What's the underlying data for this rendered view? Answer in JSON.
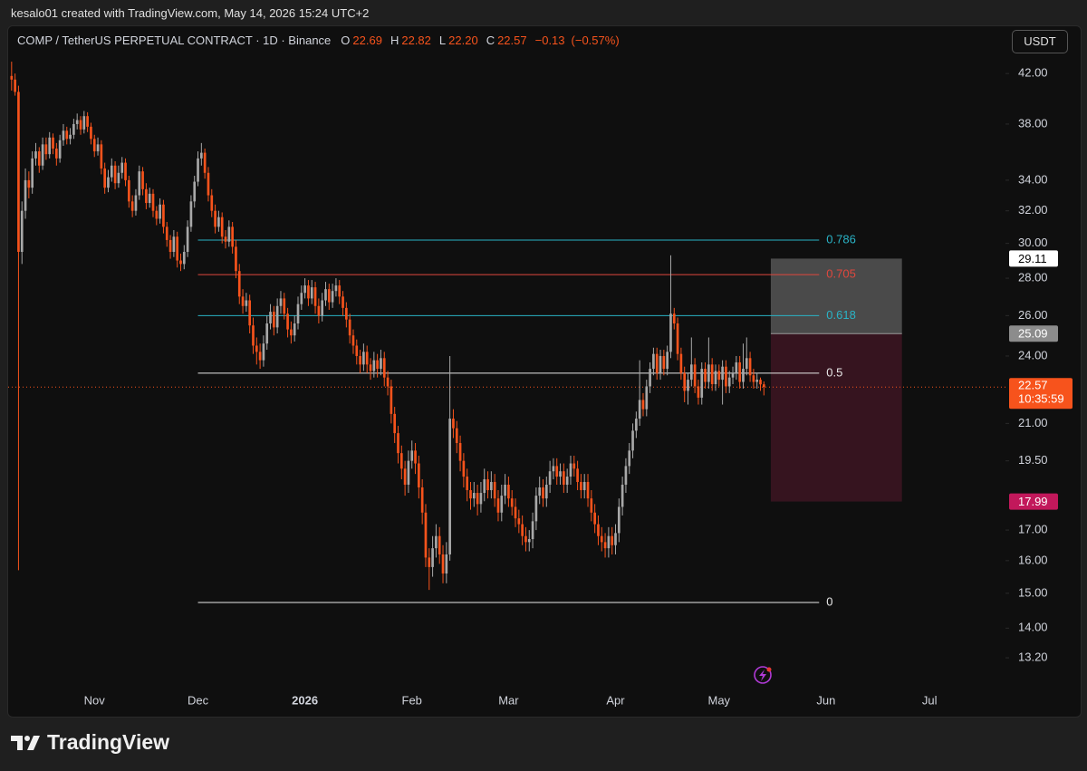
{
  "header": {
    "attribution": "kesalo01 created with TradingView.com, May 14, 2026 15:24 UTC+2"
  },
  "footer": {
    "brand": "TradingView"
  },
  "chart_data": {
    "type": "candlestick",
    "title": "COMP / TetherUS PERPETUAL CONTRACT · 1D · Binance",
    "ohlc_legend": {
      "open_label": "O",
      "open": 22.69,
      "high_label": "H",
      "high": 22.82,
      "low_label": "L",
      "low": {
        "value": 22.2,
        "label": "22.20"
      },
      "close_label": "C",
      "close": 22.57,
      "change": {
        "value": -0.13,
        "label": "−0.13"
      },
      "change_percent": {
        "value": -0.57,
        "label": "(−0.57%)"
      }
    },
    "currency": "USDT",
    "up_color": "#a8a8a8",
    "down_color": "#f7531c",
    "log_scale": true,
    "xlim": [
      -1,
      288
    ],
    "xticks": [
      {
        "value": 24,
        "label": "Nov"
      },
      {
        "value": 54,
        "label": "Dec"
      },
      {
        "value": 85,
        "label": "2026"
      },
      {
        "value": 116,
        "label": "Feb"
      },
      {
        "value": 144,
        "label": "Mar"
      },
      {
        "value": 175,
        "label": "Apr"
      },
      {
        "value": 205,
        "label": "May"
      },
      {
        "value": 236,
        "label": "Jun"
      },
      {
        "value": 266,
        "label": "Jul"
      }
    ],
    "ylim": [
      12.42,
      46.04
    ],
    "yticks": [
      {
        "value": 42,
        "label": "42.00"
      },
      {
        "value": 38,
        "label": "38.00"
      },
      {
        "value": 34,
        "label": "34.00"
      },
      {
        "value": 32,
        "label": "32.00"
      },
      {
        "value": 30,
        "label": "30.00"
      },
      {
        "value": 28,
        "label": "28.00"
      },
      {
        "value": 26,
        "label": "26.00"
      },
      {
        "value": 24,
        "label": "24.00"
      },
      {
        "value": 21,
        "label": "21.00"
      },
      {
        "value": 19.5,
        "label": "19.50"
      },
      {
        "value": 17,
        "label": "17.00"
      },
      {
        "value": 16,
        "label": "16.00"
      },
      {
        "value": 15,
        "label": "15.00"
      },
      {
        "value": 14,
        "label": "14.00"
      },
      {
        "value": 13.2,
        "label": "13.20"
      }
    ],
    "candles": [
      [
        41.8,
        43,
        40.6,
        41.5
      ],
      [
        41.5,
        42,
        40.2,
        40.5
      ],
      [
        40.5,
        41,
        15.7,
        29.5
      ],
      [
        29.5,
        32.6,
        28.8,
        32
      ],
      [
        32,
        34.8,
        31.5,
        34
      ],
      [
        34,
        34.6,
        32.8,
        33.5
      ],
      [
        33.5,
        36,
        33.1,
        35.5
      ],
      [
        35.5,
        36.6,
        35,
        36
      ],
      [
        36,
        36.3,
        34.5,
        35
      ],
      [
        35,
        37,
        34.7,
        36.5
      ],
      [
        36.5,
        37,
        35.4,
        35.8
      ],
      [
        35.8,
        37.4,
        35.5,
        37
      ],
      [
        37,
        37.3,
        35.8,
        36.2
      ],
      [
        36.2,
        36.6,
        35,
        35.5
      ],
      [
        35.5,
        37.2,
        35.2,
        36.8
      ],
      [
        36.8,
        38,
        36.4,
        37.5
      ],
      [
        37.5,
        37.8,
        36.5,
        36.9
      ],
      [
        36.9,
        37.7,
        36.5,
        37.2
      ],
      [
        37.2,
        38.4,
        36.9,
        38
      ],
      [
        38,
        38.8,
        37.6,
        38.3
      ],
      [
        38.3,
        38.6,
        37.2,
        37.6
      ],
      [
        37.6,
        39,
        37.3,
        38.6
      ],
      [
        38.6,
        38.9,
        37.4,
        37.8
      ],
      [
        37.8,
        38.1,
        36.5,
        36.9
      ],
      [
        36.9,
        37.2,
        35.6,
        36
      ],
      [
        36,
        37,
        35.7,
        36.5
      ],
      [
        36.5,
        36.8,
        34.4,
        34.8
      ],
      [
        34.8,
        35.2,
        33.1,
        33.5
      ],
      [
        33.5,
        34.7,
        33.2,
        34.2
      ],
      [
        34.2,
        35.5,
        33.9,
        35
      ],
      [
        35,
        35.3,
        33.4,
        33.8
      ],
      [
        33.8,
        35,
        33.5,
        34.5
      ],
      [
        34.5,
        35.6,
        34.1,
        35.2
      ],
      [
        35.2,
        35.5,
        33.6,
        34
      ],
      [
        34,
        34.3,
        32.2,
        32.6
      ],
      [
        32.6,
        33,
        31.6,
        32
      ],
      [
        32,
        33.4,
        31.7,
        33
      ],
      [
        33,
        35,
        32.7,
        34.6
      ],
      [
        34.6,
        34.9,
        33,
        33.4
      ],
      [
        33.4,
        33.8,
        32.1,
        32.5
      ],
      [
        32.5,
        33.5,
        32.2,
        33.1
      ],
      [
        33.1,
        33.4,
        31.6,
        32
      ],
      [
        32,
        32.3,
        31.1,
        31.5
      ],
      [
        31.5,
        32.8,
        31.2,
        32.4
      ],
      [
        32.4,
        32.7,
        30.6,
        31
      ],
      [
        31,
        31.3,
        29.8,
        30.2
      ],
      [
        30.2,
        30.5,
        29.1,
        29.5
      ],
      [
        29.5,
        30.8,
        29.2,
        30.4
      ],
      [
        30.4,
        30.7,
        28.6,
        29
      ],
      [
        29,
        29.4,
        28.4,
        28.8
      ],
      [
        28.8,
        29.9,
        28.5,
        29.5
      ],
      [
        29.5,
        31.4,
        29.2,
        31
      ],
      [
        31,
        33,
        30.7,
        32.6
      ],
      [
        32.6,
        34.3,
        32.2,
        33.9
      ],
      [
        33.9,
        36,
        33.6,
        35.5
      ],
      [
        35.5,
        36.6,
        35,
        35.9
      ],
      [
        35.9,
        36.2,
        34.1,
        34.5
      ],
      [
        34.5,
        34.9,
        32.6,
        33
      ],
      [
        33,
        33.4,
        31.6,
        32
      ],
      [
        32,
        32.4,
        30.6,
        31
      ],
      [
        31,
        32,
        30.7,
        31.6
      ],
      [
        31.6,
        31.9,
        30,
        30.4
      ],
      [
        30.4,
        30.8,
        29.7,
        30.1
      ],
      [
        30.1,
        31.4,
        29.8,
        31
      ],
      [
        31,
        31.3,
        29.4,
        29.8
      ],
      [
        29.8,
        30.2,
        28,
        28.4
      ],
      [
        28.4,
        28.8,
        26.6,
        27
      ],
      [
        27,
        27.4,
        26.1,
        26.5
      ],
      [
        26.5,
        27.2,
        26.2,
        26.8
      ],
      [
        26.8,
        27.1,
        25.1,
        25.5
      ],
      [
        25.5,
        25.9,
        24.1,
        24.5
      ],
      [
        24.5,
        24.9,
        23.6,
        24.2
      ],
      [
        24.2,
        24.6,
        23.4,
        23.8
      ],
      [
        23.8,
        25,
        23.5,
        24.6
      ],
      [
        24.6,
        26,
        24.3,
        25.6
      ],
      [
        25.6,
        26.6,
        25.3,
        26.2
      ],
      [
        26.2,
        26.5,
        25,
        25.4
      ],
      [
        25.4,
        26.9,
        25.1,
        26.5
      ],
      [
        26.5,
        27.3,
        26.1,
        26.9
      ],
      [
        26.9,
        27.2,
        25.8,
        26.1
      ],
      [
        26.1,
        26.4,
        24.9,
        25.3
      ],
      [
        25.3,
        25.7,
        24.6,
        25
      ],
      [
        25,
        26,
        24.7,
        25.6
      ],
      [
        25.6,
        27,
        25.3,
        26.6
      ],
      [
        26.6,
        27.6,
        26.3,
        27.2
      ],
      [
        27.2,
        28,
        26.9,
        27.6
      ],
      [
        27.6,
        27.9,
        26.5,
        26.9
      ],
      [
        26.9,
        27.9,
        26.6,
        27.5
      ],
      [
        27.5,
        27.8,
        26.1,
        26.5
      ],
      [
        26.5,
        26.9,
        25.6,
        26
      ],
      [
        26,
        27.2,
        25.7,
        26.8
      ],
      [
        26.8,
        27.8,
        26.5,
        27.4
      ],
      [
        27.4,
        27.7,
        26.3,
        26.7
      ],
      [
        26.7,
        27.7,
        26.4,
        27.3
      ],
      [
        27.3,
        28,
        27,
        27.6
      ],
      [
        27.6,
        27.9,
        26.6,
        27
      ],
      [
        27,
        27.3,
        26,
        26.4
      ],
      [
        26.4,
        26.7,
        25.4,
        25.8
      ],
      [
        25.8,
        26.1,
        24.6,
        25
      ],
      [
        25,
        25.3,
        24.1,
        24.5
      ],
      [
        24.5,
        24.8,
        23.6,
        24
      ],
      [
        24,
        24.3,
        23.2,
        23.6
      ],
      [
        23.6,
        24.6,
        23.3,
        24.2
      ],
      [
        24.2,
        24.5,
        23.2,
        23.6
      ],
      [
        23.6,
        23.9,
        22.9,
        23.3
      ],
      [
        23.3,
        24.2,
        23,
        23.8
      ],
      [
        23.8,
        24.1,
        23,
        23.4
      ],
      [
        23.4,
        24.3,
        23.1,
        23.9
      ],
      [
        23.9,
        24.2,
        22.6,
        23
      ],
      [
        23,
        23.3,
        22.2,
        22.6
      ],
      [
        22.6,
        22.9,
        21,
        21.4
      ],
      [
        21.4,
        21.7,
        20.2,
        20.6
      ],
      [
        20.6,
        20.9,
        19.4,
        19.8
      ],
      [
        19.8,
        20.1,
        18.8,
        19.2
      ],
      [
        19.2,
        19.5,
        18.2,
        18.6
      ],
      [
        18.6,
        19.9,
        18.3,
        19.5
      ],
      [
        19.5,
        20.3,
        19.2,
        19.9
      ],
      [
        19.9,
        20.2,
        19,
        19.4
      ],
      [
        19.4,
        19.7,
        18.1,
        18.5
      ],
      [
        18.5,
        18.8,
        17.2,
        17.6
      ],
      [
        17.6,
        17.9,
        15.8,
        16.1
      ],
      [
        16.1,
        16.4,
        15.1,
        15.8
      ],
      [
        15.8,
        16.8,
        15.5,
        16.4
      ],
      [
        16.4,
        17.2,
        16.1,
        16.8
      ],
      [
        16.8,
        17.1,
        15.9,
        16.2
      ],
      [
        16.2,
        16.5,
        15.3,
        15.6
      ],
      [
        15.6,
        16.6,
        15.3,
        16.2
      ],
      [
        16.2,
        24,
        16,
        21.2
      ],
      [
        21.2,
        21.6,
        20.4,
        20.8
      ],
      [
        20.8,
        21.1,
        19.8,
        20.2
      ],
      [
        20.2,
        20.5,
        19.1,
        19.5
      ],
      [
        19.5,
        19.8,
        18.5,
        18.9
      ],
      [
        18.9,
        19.2,
        18,
        18.4
      ],
      [
        18.4,
        18.7,
        17.7,
        18.1
      ],
      [
        18.1,
        18.7,
        17.8,
        18.3
      ],
      [
        18.3,
        18.6,
        17.5,
        17.9
      ],
      [
        17.9,
        18.7,
        17.6,
        18.3
      ],
      [
        18.3,
        19.2,
        18,
        18.8
      ],
      [
        18.8,
        19.1,
        18.1,
        18.4
      ],
      [
        18.4,
        19.1,
        18.1,
        18.7
      ],
      [
        18.7,
        19,
        17.8,
        18.1
      ],
      [
        18.1,
        18.4,
        17.3,
        17.6
      ],
      [
        17.6,
        18.6,
        17.3,
        18.2
      ],
      [
        18.2,
        19,
        17.9,
        18.6
      ],
      [
        18.6,
        18.9,
        17.8,
        18.1
      ],
      [
        18.1,
        18.4,
        17.5,
        17.8
      ],
      [
        17.8,
        18.1,
        17.1,
        17.4
      ],
      [
        17.4,
        17.7,
        16.9,
        17.2
      ],
      [
        17.2,
        17.5,
        16.5,
        16.8
      ],
      [
        16.8,
        17.1,
        16.3,
        16.6
      ],
      [
        16.6,
        17,
        16.3,
        16.7
      ],
      [
        16.7,
        17.6,
        16.4,
        17.3
      ],
      [
        17.3,
        18.5,
        17,
        18.2
      ],
      [
        18.2,
        18.9,
        17.9,
        18.5
      ],
      [
        18.5,
        18.8,
        17.8,
        18.1
      ],
      [
        18.1,
        18.9,
        17.8,
        18.6
      ],
      [
        18.6,
        19.5,
        18.3,
        19.1
      ],
      [
        19.1,
        19.6,
        18.8,
        19.3
      ],
      [
        19.3,
        19.6,
        18.6,
        18.9
      ],
      [
        18.9,
        19.4,
        18.6,
        19.1
      ],
      [
        19.1,
        19.4,
        18.3,
        18.6
      ],
      [
        18.6,
        19.2,
        18.3,
        18.9
      ],
      [
        18.9,
        19.7,
        18.6,
        19.4
      ],
      [
        19.4,
        19.7,
        18.9,
        19.2
      ],
      [
        19.2,
        19.5,
        18.4,
        18.7
      ],
      [
        18.7,
        19,
        18.1,
        18.4
      ],
      [
        18.4,
        19,
        18.1,
        18.7
      ],
      [
        18.7,
        19,
        17.8,
        18.1
      ],
      [
        18.1,
        18.4,
        17.3,
        17.6
      ],
      [
        17.6,
        17.9,
        16.9,
        17.2
      ],
      [
        17.2,
        17.5,
        16.5,
        16.8
      ],
      [
        16.8,
        17.1,
        16.3,
        16.6
      ],
      [
        16.6,
        16.9,
        16.1,
        16.4
      ],
      [
        16.4,
        17.1,
        16.1,
        16.8
      ],
      [
        16.8,
        17.1,
        16.2,
        16.5
      ],
      [
        16.5,
        17.2,
        16.2,
        16.9
      ],
      [
        16.9,
        18.1,
        16.6,
        17.8
      ],
      [
        17.8,
        18.9,
        17.5,
        18.6
      ],
      [
        18.6,
        19.6,
        18.3,
        19.3
      ],
      [
        19.3,
        20.2,
        19,
        19.9
      ],
      [
        19.9,
        21,
        19.6,
        20.7
      ],
      [
        20.7,
        21.5,
        20.4,
        21.2
      ],
      [
        21.2,
        23.8,
        20.9,
        22
      ],
      [
        22,
        22.3,
        21.3,
        21.6
      ],
      [
        21.6,
        22.9,
        21.3,
        22.6
      ],
      [
        22.6,
        23.7,
        22.3,
        23.4
      ],
      [
        23.4,
        24.4,
        23.1,
        24.1
      ],
      [
        24.1,
        24.4,
        22.9,
        23.2
      ],
      [
        23.2,
        24.3,
        22.9,
        24
      ],
      [
        24,
        24.3,
        23.1,
        23.4
      ],
      [
        23.4,
        24.5,
        23.1,
        24.2
      ],
      [
        24.2,
        29.3,
        23.9,
        26.1
      ],
      [
        26.1,
        26.4,
        25.3,
        25.6
      ],
      [
        25.6,
        25.9,
        23.8,
        24.1
      ],
      [
        24.1,
        24.4,
        22.9,
        23.2
      ],
      [
        23.2,
        23.5,
        21.9,
        22.4
      ],
      [
        22.4,
        23.2,
        21.8,
        22.9
      ],
      [
        22.9,
        24.9,
        22.6,
        23.6
      ],
      [
        23.6,
        23.9,
        22.3,
        22.6
      ],
      [
        22.6,
        22.9,
        21.8,
        22.1
      ],
      [
        22.1,
        23.7,
        21.8,
        23.4
      ],
      [
        23.4,
        23.7,
        22.5,
        22.8
      ],
      [
        22.8,
        24.9,
        22.5,
        23.6
      ],
      [
        23.6,
        23.9,
        22.4,
        22.7
      ],
      [
        22.7,
        23.6,
        22.4,
        23.3
      ],
      [
        23.3,
        23.6,
        22.6,
        22.9
      ],
      [
        22.9,
        23.8,
        21.8,
        23.5
      ],
      [
        23.5,
        23.8,
        22.3,
        22.6
      ],
      [
        22.6,
        23.3,
        22.3,
        23
      ],
      [
        23,
        23.5,
        22.7,
        23.2
      ],
      [
        23.2,
        24,
        22.9,
        23.7
      ],
      [
        23.7,
        24,
        22.5,
        22.8
      ],
      [
        22.8,
        24.6,
        22.5,
        23.4
      ],
      [
        23.4,
        24.9,
        23.1,
        23.9
      ],
      [
        23.9,
        24.2,
        22.8,
        23.1
      ],
      [
        23.1,
        23.4,
        22.5,
        22.8
      ],
      [
        22.8,
        23.2,
        22.5,
        22.9
      ],
      [
        22.9,
        23,
        22.4,
        22.69
      ],
      [
        22.69,
        22.82,
        22.2,
        22.57
      ]
    ],
    "fib_start": 54,
    "fib_end": 234,
    "fib_levels": [
      {
        "level": 0.786,
        "price": 30.2,
        "color": "#2ab3c6"
      },
      {
        "level": 0.705,
        "price": 28.2,
        "color": "#e0473d"
      },
      {
        "level": 0.618,
        "price": 26.0,
        "color": "#2ab3c6"
      },
      {
        "level": 0.5,
        "price": 23.2,
        "color": "#e8e8e8"
      },
      {
        "level": 0,
        "price": 14.73,
        "color": "#e8e8e8"
      }
    ],
    "position": {
      "start": 220,
      "end": 258,
      "target": 29.11,
      "entry": 25.09,
      "stop": 17.99,
      "profit_color": "#4a4a4a",
      "loss_color": "#36141f",
      "target_color": "#ffffff",
      "entry_color": "#8c8c8c",
      "stop_color": "#c2185b"
    },
    "last_price": 22.57,
    "last_price_color": "#f7531c",
    "countdown": "10:35:59"
  }
}
